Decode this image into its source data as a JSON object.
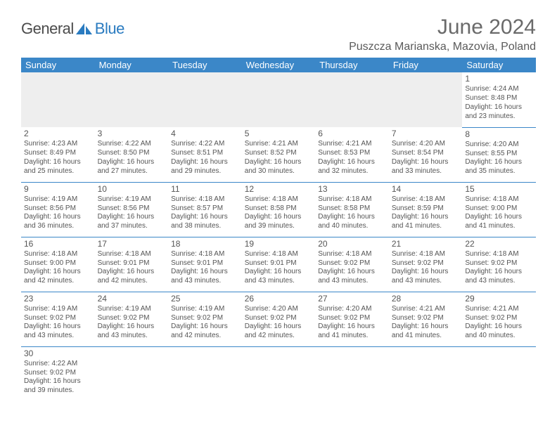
{
  "logo": {
    "part1": "General",
    "part2": "Blue"
  },
  "title": "June 2024",
  "location": "Puszcza Marianska, Mazovia, Poland",
  "headerBg": "#3b87c8",
  "dayNames": [
    "Sunday",
    "Monday",
    "Tuesday",
    "Wednesday",
    "Thursday",
    "Friday",
    "Saturday"
  ],
  "days": {
    "1": {
      "sr": "4:24 AM",
      "ss": "8:48 PM",
      "dl": "16 hours and 23 minutes."
    },
    "2": {
      "sr": "4:23 AM",
      "ss": "8:49 PM",
      "dl": "16 hours and 25 minutes."
    },
    "3": {
      "sr": "4:22 AM",
      "ss": "8:50 PM",
      "dl": "16 hours and 27 minutes."
    },
    "4": {
      "sr": "4:22 AM",
      "ss": "8:51 PM",
      "dl": "16 hours and 29 minutes."
    },
    "5": {
      "sr": "4:21 AM",
      "ss": "8:52 PM",
      "dl": "16 hours and 30 minutes."
    },
    "6": {
      "sr": "4:21 AM",
      "ss": "8:53 PM",
      "dl": "16 hours and 32 minutes."
    },
    "7": {
      "sr": "4:20 AM",
      "ss": "8:54 PM",
      "dl": "16 hours and 33 minutes."
    },
    "8": {
      "sr": "4:20 AM",
      "ss": "8:55 PM",
      "dl": "16 hours and 35 minutes."
    },
    "9": {
      "sr": "4:19 AM",
      "ss": "8:56 PM",
      "dl": "16 hours and 36 minutes."
    },
    "10": {
      "sr": "4:19 AM",
      "ss": "8:56 PM",
      "dl": "16 hours and 37 minutes."
    },
    "11": {
      "sr": "4:18 AM",
      "ss": "8:57 PM",
      "dl": "16 hours and 38 minutes."
    },
    "12": {
      "sr": "4:18 AM",
      "ss": "8:58 PM",
      "dl": "16 hours and 39 minutes."
    },
    "13": {
      "sr": "4:18 AM",
      "ss": "8:58 PM",
      "dl": "16 hours and 40 minutes."
    },
    "14": {
      "sr": "4:18 AM",
      "ss": "8:59 PM",
      "dl": "16 hours and 41 minutes."
    },
    "15": {
      "sr": "4:18 AM",
      "ss": "9:00 PM",
      "dl": "16 hours and 41 minutes."
    },
    "16": {
      "sr": "4:18 AM",
      "ss": "9:00 PM",
      "dl": "16 hours and 42 minutes."
    },
    "17": {
      "sr": "4:18 AM",
      "ss": "9:01 PM",
      "dl": "16 hours and 42 minutes."
    },
    "18": {
      "sr": "4:18 AM",
      "ss": "9:01 PM",
      "dl": "16 hours and 43 minutes."
    },
    "19": {
      "sr": "4:18 AM",
      "ss": "9:01 PM",
      "dl": "16 hours and 43 minutes."
    },
    "20": {
      "sr": "4:18 AM",
      "ss": "9:02 PM",
      "dl": "16 hours and 43 minutes."
    },
    "21": {
      "sr": "4:18 AM",
      "ss": "9:02 PM",
      "dl": "16 hours and 43 minutes."
    },
    "22": {
      "sr": "4:18 AM",
      "ss": "9:02 PM",
      "dl": "16 hours and 43 minutes."
    },
    "23": {
      "sr": "4:19 AM",
      "ss": "9:02 PM",
      "dl": "16 hours and 43 minutes."
    },
    "24": {
      "sr": "4:19 AM",
      "ss": "9:02 PM",
      "dl": "16 hours and 43 minutes."
    },
    "25": {
      "sr": "4:19 AM",
      "ss": "9:02 PM",
      "dl": "16 hours and 42 minutes."
    },
    "26": {
      "sr": "4:20 AM",
      "ss": "9:02 PM",
      "dl": "16 hours and 42 minutes."
    },
    "27": {
      "sr": "4:20 AM",
      "ss": "9:02 PM",
      "dl": "16 hours and 41 minutes."
    },
    "28": {
      "sr": "4:21 AM",
      "ss": "9:02 PM",
      "dl": "16 hours and 41 minutes."
    },
    "29": {
      "sr": "4:21 AM",
      "ss": "9:02 PM",
      "dl": "16 hours and 40 minutes."
    },
    "30": {
      "sr": "4:22 AM",
      "ss": "9:02 PM",
      "dl": "16 hours and 39 minutes."
    }
  },
  "labels": {
    "sunrise": "Sunrise: ",
    "sunset": "Sunset: ",
    "daylight": "Daylight: "
  },
  "grid": [
    [
      0,
      0,
      0,
      0,
      0,
      0,
      1
    ],
    [
      2,
      3,
      4,
      5,
      6,
      7,
      8
    ],
    [
      9,
      10,
      11,
      12,
      13,
      14,
      15
    ],
    [
      16,
      17,
      18,
      19,
      20,
      21,
      22
    ],
    [
      23,
      24,
      25,
      26,
      27,
      28,
      29
    ],
    [
      30,
      0,
      0,
      0,
      0,
      0,
      0
    ]
  ]
}
